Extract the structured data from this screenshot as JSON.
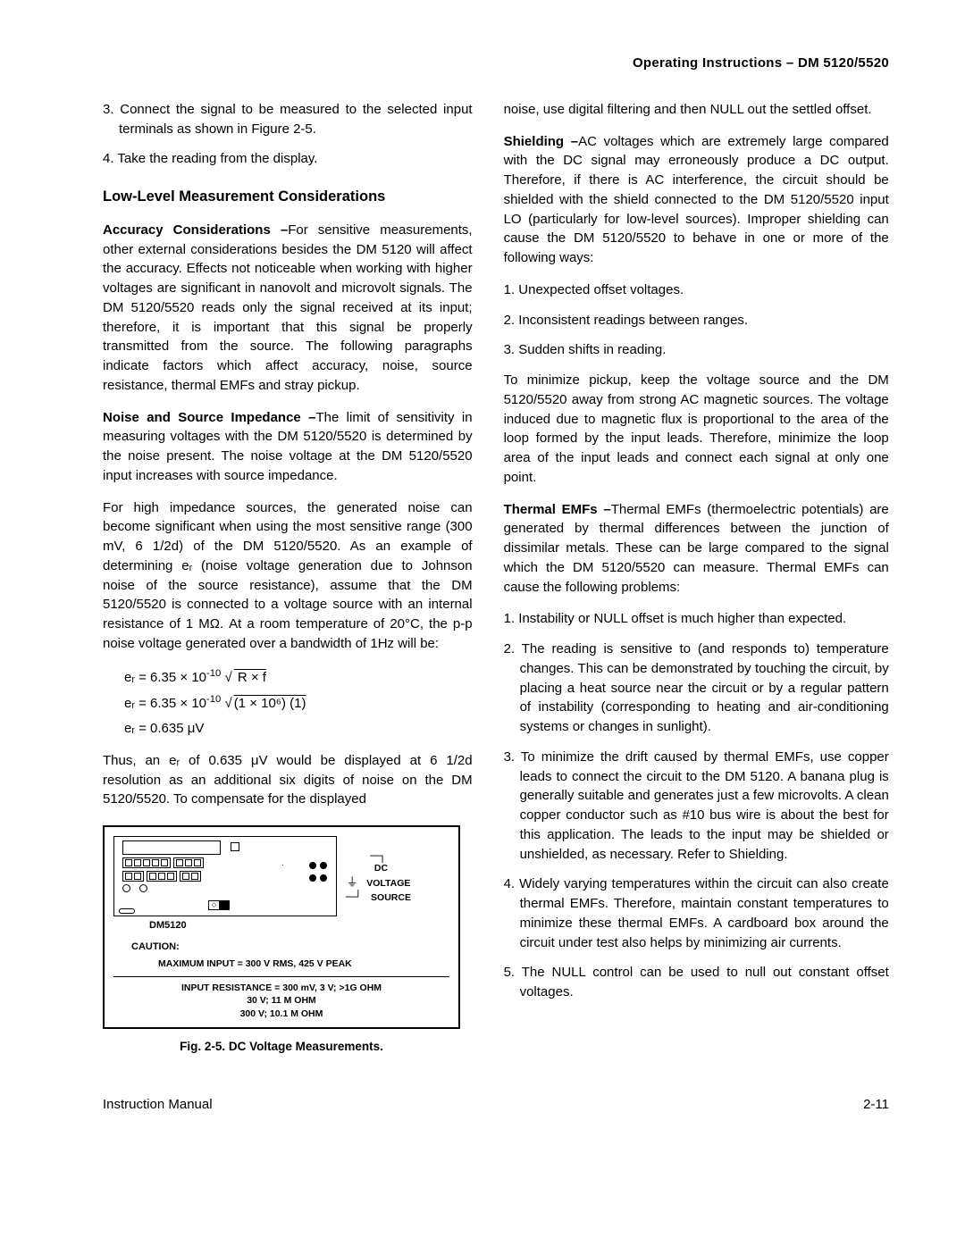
{
  "header": {
    "title": "Operating Instructions – DM 5120/5520"
  },
  "left": {
    "step3": "3. Connect the signal to be measured to the selected input terminals as shown in Figure 2-5.",
    "step4": "4. Take the reading from the display.",
    "sectionHeading": "Low-Level Measurement Considerations",
    "accuracyLabel": "Accuracy Considerations –",
    "accuracyText": "For sensitive measurements, other external considerations besides the DM 5120 will affect the accuracy. Effects not noticeable when working with higher voltages are significant in nanovolt and microvolt signals. The DM 5120/5520 reads only the signal received at its input; therefore, it is important that this signal be properly transmitted from the source. The following paragraphs indicate factors which affect accuracy, noise, source resistance, thermal EMFs and stray pickup.",
    "noiseLabel": "Noise and Source Impedance –",
    "noiseText": "The limit of sensitivity in measuring voltages with the DM 5120/5520 is determined by the noise present. The noise voltage at the DM 5120/5520 input increases with source impedance.",
    "highImpText": "For high impedance sources, the generated noise can become significant when using the most sensitive range (300 mV, 6 1/2d) of the DM 5120/5520. As an example of determining eᵣ (noise voltage generation due to Johnson noise of the source resistance), assume that the DM 5120/5520 is connected to a voltage source with an internal resistance of 1 MΩ. At a room temperature of 20°C, the p-p noise voltage generated over a bandwidth of 1Hz will be:",
    "eq1_lhs": "eᵣ  =  6.35 × 10",
    "eq1_exp": "-10",
    "eq1_rhs": " R × f",
    "eq2_lhs": "eᵣ  =  6.35 × 10",
    "eq2_exp": "-10",
    "eq2_rhs": "(1 × 10⁶)  (1)",
    "eq3": "eᵣ  =  0.635 μV",
    "thusText": "Thus, an eᵣ of 0.635 μV would be displayed at 6 1/2d resolution as an additional six digits of noise on the DM 5120/5520. To compensate for the displayed",
    "figure": {
      "deviceLabel": "DM5120",
      "dcLabel": "DC",
      "voltageLabel": "VOLTAGE",
      "sourceLabel": "SOURCE",
      "cautionTitle": "CAUTION:",
      "cautionLine": "MAXIMUM INPUT = 300 V RMS, 425 V PEAK",
      "inputRes1": "INPUT RESISTANCE = 300 mV, 3 V; >1G OHM",
      "inputRes2": "30 V; 11 M OHM",
      "inputRes3": "300 V; 10.1 M OHM",
      "caption": "Fig. 2-5. DC Voltage Measurements."
    }
  },
  "right": {
    "noiseCont": "noise, use digital filtering and then NULL out the settled offset.",
    "shieldingLabel": "Shielding –",
    "shieldingText": "AC voltages which are extremely large compared with the DC signal may erroneously produce a DC output. Therefore, if there is AC interference, the circuit should be shielded with the shield connected to the DM 5120/5520 input LO (particularly for low-level sources). Improper shielding can cause the DM 5120/5520 to behave in one or more of the following ways:",
    "shield1": "1. Unexpected offset voltages.",
    "shield2": "2. Inconsistent readings between ranges.",
    "shield3": "3. Sudden shifts in reading.",
    "minimizeText": "To minimize pickup, keep the voltage source and the DM 5120/5520 away from strong AC magnetic sources. The voltage induced due to magnetic flux is proportional to the area of the loop formed by the input leads. Therefore, minimize the loop area of the input leads and connect each signal at only one point.",
    "thermalLabel": "Thermal EMFs –",
    "thermalText": "Thermal EMFs (thermoelectric potentials) are generated by thermal differences between the junction of dissimilar metals. These can be large compared to the signal which the DM 5120/5520 can measure. Thermal EMFs can cause the following problems:",
    "thermal1": "1. Instability or NULL offset is much higher than expected.",
    "thermal2": "2. The reading is sensitive to (and responds to) temperature changes. This can be demonstrated by touching the circuit, by placing a heat source near the circuit or by a regular pattern of instability (corresponding to heating and air-conditioning systems or changes in sunlight).",
    "thermal3": "3. To minimize the drift caused by thermal EMFs, use copper leads to connect the circuit to the DM 5120. A banana plug is generally suitable and generates just a few microvolts. A clean copper conductor such as #10 bus wire is about the best for this application. The leads to the input may be shielded or unshielded, as necessary. Refer to Shielding.",
    "thermal4": "4. Widely varying temperatures within the circuit can also create thermal EMFs. Therefore, maintain constant temperatures to minimize these thermal EMFs. A cardboard box around the circuit under test also helps by minimizing air currents.",
    "thermal5": "5. The NULL control can be used to null out constant offset voltages."
  },
  "footer": {
    "left": "Instruction Manual",
    "right": "2-11"
  }
}
